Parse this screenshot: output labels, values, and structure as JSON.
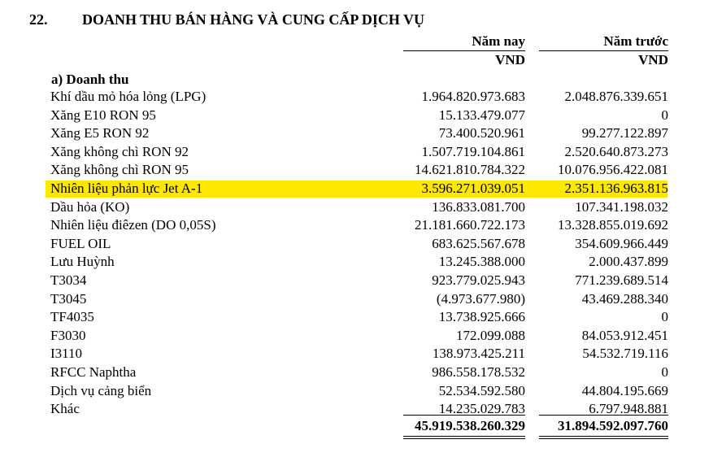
{
  "note": {
    "number": "22.",
    "title": "DOANH THU BÁN HÀNG VÀ CUNG CẤP DỊCH VỤ"
  },
  "columns": {
    "current": {
      "label": "Năm nay",
      "unit": "VND"
    },
    "prior": {
      "label": "Năm trước",
      "unit": "VND"
    }
  },
  "section": {
    "title": "a) Doanh thu"
  },
  "highlight_color": "#ffe800",
  "rows": [
    {
      "label": "Khí dầu mỏ hóa lỏng (LPG)",
      "current": "1.964.820.973.683",
      "prior": "2.048.876.339.651"
    },
    {
      "label": "Xăng E10 RON 95",
      "current": "15.133.479.077",
      "prior": "0"
    },
    {
      "label": "Xăng E5 RON 92",
      "current": "73.400.520.961",
      "prior": "99.277.122.897"
    },
    {
      "label": "Xăng không chì RON 92",
      "current": "1.507.719.104.861",
      "prior": "2.520.640.873.273"
    },
    {
      "label": "Xăng không chì RON 95",
      "current": "14.621.810.784.322",
      "prior": "10.076.956.422.081"
    },
    {
      "label": "Nhiên liệu phản lực Jet A-1",
      "current": "3.596.271.039.051",
      "prior": "2.351.136.963.815",
      "highlighted": true
    },
    {
      "label": "Dầu hỏa (KO)",
      "current": "136.833.081.700",
      "prior": "107.341.198.032"
    },
    {
      "label": "Nhiên liệu điêzen (DO 0,05S)",
      "current": "21.181.660.722.173",
      "prior": "13.328.855.019.692"
    },
    {
      "label": "FUEL OIL",
      "current": "683.625.567.678",
      "prior": "354.609.966.449"
    },
    {
      "label": "Lưu Huỳnh",
      "current": "13.245.388.000",
      "prior": "2.000.437.899"
    },
    {
      "label": "T3034",
      "current": "923.779.025.943",
      "prior": "771.239.689.514"
    },
    {
      "label": "T3045",
      "current": "(4.973.677.980)",
      "prior": "43.469.288.340"
    },
    {
      "label": "TF4035",
      "current": "13.738.925.666",
      "prior": "0"
    },
    {
      "label": "F3030",
      "current": "172.099.088",
      "prior": "84.053.912.451"
    },
    {
      "label": "I3110",
      "current": "138.973.425.211",
      "prior": "54.532.719.116"
    },
    {
      "label": "RFCC Naphtha",
      "current": "986.558.178.532",
      "prior": "0"
    },
    {
      "label": "Dịch vụ cảng biển",
      "current": "52.534.592.580",
      "prior": "44.804.195.669"
    },
    {
      "label": "Khác",
      "current": "14.235.029.783",
      "prior": "6.797.948.881"
    }
  ],
  "total": {
    "current": "45.919.538.260.329",
    "prior": "31.894.592.097.760"
  }
}
